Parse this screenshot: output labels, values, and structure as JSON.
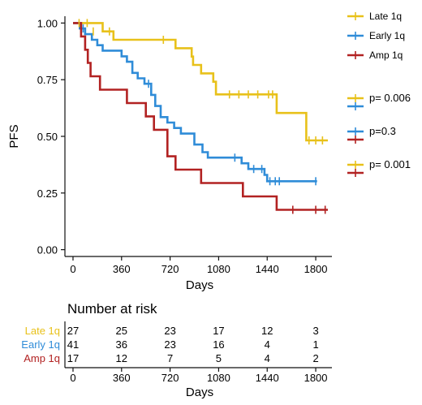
{
  "chart_data": {
    "type": "line",
    "subtype": "kaplan-meier",
    "xlabel": "Days",
    "ylabel": "PFS",
    "xlim": [
      -60,
      1920
    ],
    "ylim": [
      -0.03,
      1.03
    ],
    "x_ticks": [
      0,
      360,
      720,
      1080,
      1440,
      1800
    ],
    "y_ticks": [
      0.0,
      0.25,
      0.5,
      0.75,
      1.0
    ],
    "y_tick_labels": [
      "0.00",
      "0.25",
      "0.50",
      "0.75",
      "1.00"
    ],
    "grid": false,
    "legend_position": "right",
    "series": [
      {
        "name": "Late 1q",
        "color": "#E8C11A",
        "steps": [
          [
            0,
            1.0
          ],
          [
            220,
            1.0
          ],
          [
            220,
            0.963
          ],
          [
            300,
            0.963
          ],
          [
            300,
            0.926
          ],
          [
            760,
            0.926
          ],
          [
            760,
            0.889
          ],
          [
            880,
            0.889
          ],
          [
            880,
            0.852
          ],
          [
            890,
            0.852
          ],
          [
            890,
            0.815
          ],
          [
            950,
            0.815
          ],
          [
            950,
            0.778
          ],
          [
            1040,
            0.778
          ],
          [
            1040,
            0.741
          ],
          [
            1060,
            0.741
          ],
          [
            1060,
            0.685
          ],
          [
            1510,
            0.685
          ],
          [
            1510,
            0.603
          ],
          [
            1730,
            0.603
          ],
          [
            1730,
            0.482
          ],
          [
            1890,
            0.482
          ]
        ],
        "censor": [
          [
            45,
            1.0
          ],
          [
            105,
            1.0
          ],
          [
            150,
            0.963
          ],
          [
            270,
            0.963
          ],
          [
            670,
            0.926
          ],
          [
            1160,
            0.685
          ],
          [
            1230,
            0.685
          ],
          [
            1300,
            0.685
          ],
          [
            1370,
            0.685
          ],
          [
            1450,
            0.685
          ],
          [
            1480,
            0.685
          ],
          [
            1750,
            0.482
          ],
          [
            1800,
            0.482
          ],
          [
            1850,
            0.482
          ]
        ]
      },
      {
        "name": "Early 1q",
        "color": "#2F8CD8",
        "steps": [
          [
            0,
            1.0
          ],
          [
            50,
            1.0
          ],
          [
            50,
            0.976
          ],
          [
            90,
            0.976
          ],
          [
            90,
            0.951
          ],
          [
            140,
            0.951
          ],
          [
            140,
            0.926
          ],
          [
            180,
            0.926
          ],
          [
            180,
            0.902
          ],
          [
            220,
            0.902
          ],
          [
            220,
            0.878
          ],
          [
            360,
            0.878
          ],
          [
            360,
            0.853
          ],
          [
            400,
            0.853
          ],
          [
            400,
            0.829
          ],
          [
            440,
            0.829
          ],
          [
            440,
            0.78
          ],
          [
            480,
            0.78
          ],
          [
            480,
            0.756
          ],
          [
            530,
            0.756
          ],
          [
            530,
            0.732
          ],
          [
            580,
            0.732
          ],
          [
            580,
            0.683
          ],
          [
            610,
            0.683
          ],
          [
            610,
            0.634
          ],
          [
            650,
            0.634
          ],
          [
            650,
            0.585
          ],
          [
            700,
            0.585
          ],
          [
            700,
            0.561
          ],
          [
            750,
            0.561
          ],
          [
            750,
            0.537
          ],
          [
            800,
            0.537
          ],
          [
            800,
            0.512
          ],
          [
            900,
            0.512
          ],
          [
            900,
            0.464
          ],
          [
            960,
            0.464
          ],
          [
            960,
            0.43
          ],
          [
            1000,
            0.43
          ],
          [
            1000,
            0.406
          ],
          [
            1250,
            0.406
          ],
          [
            1250,
            0.381
          ],
          [
            1300,
            0.381
          ],
          [
            1300,
            0.356
          ],
          [
            1420,
            0.356
          ],
          [
            1420,
            0.33
          ],
          [
            1440,
            0.33
          ],
          [
            1440,
            0.302
          ],
          [
            1810,
            0.302
          ]
        ],
        "censor": [
          [
            75,
            0.976
          ],
          [
            560,
            0.732
          ],
          [
            1200,
            0.406
          ],
          [
            1340,
            0.356
          ],
          [
            1400,
            0.356
          ],
          [
            1460,
            0.302
          ],
          [
            1500,
            0.302
          ],
          [
            1530,
            0.302
          ],
          [
            1800,
            0.302
          ]
        ]
      },
      {
        "name": "Amp 1q",
        "color": "#B22222",
        "steps": [
          [
            0,
            1.0
          ],
          [
            60,
            1.0
          ],
          [
            60,
            0.941
          ],
          [
            90,
            0.941
          ],
          [
            90,
            0.882
          ],
          [
            110,
            0.882
          ],
          [
            110,
            0.824
          ],
          [
            130,
            0.824
          ],
          [
            130,
            0.765
          ],
          [
            200,
            0.765
          ],
          [
            200,
            0.706
          ],
          [
            400,
            0.706
          ],
          [
            400,
            0.647
          ],
          [
            540,
            0.647
          ],
          [
            540,
            0.588
          ],
          [
            600,
            0.588
          ],
          [
            600,
            0.529
          ],
          [
            700,
            0.529
          ],
          [
            700,
            0.412
          ],
          [
            760,
            0.412
          ],
          [
            760,
            0.353
          ],
          [
            950,
            0.353
          ],
          [
            950,
            0.294
          ],
          [
            1260,
            0.294
          ],
          [
            1260,
            0.235
          ],
          [
            1510,
            0.235
          ],
          [
            1510,
            0.176
          ],
          [
            1890,
            0.176
          ]
        ],
        "censor": [
          [
            1630,
            0.176
          ],
          [
            1800,
            0.176
          ],
          [
            1870,
            0.176
          ]
        ]
      }
    ],
    "p_values": [
      {
        "label": "p= 0.006",
        "colors": [
          "#E8C11A",
          "#2F8CD8"
        ]
      },
      {
        "label": "p=0.3",
        "colors": [
          "#2F8CD8",
          "#B22222"
        ]
      },
      {
        "label": "p= 0.001",
        "colors": [
          "#E8C11A",
          "#B22222"
        ]
      }
    ],
    "risk_table": {
      "title": "Number at risk",
      "xlabel": "Days",
      "times": [
        0,
        360,
        720,
        1080,
        1440,
        1800
      ],
      "rows": [
        {
          "name": "Late 1q",
          "color": "#E8C11A",
          "counts": [
            "27",
            "25",
            "23",
            "17",
            "12",
            "3"
          ]
        },
        {
          "name": "Early 1q",
          "color": "#2F8CD8",
          "counts": [
            "41",
            "36",
            "23",
            "16",
            "4",
            "1"
          ]
        },
        {
          "name": "Amp 1q",
          "color": "#B22222",
          "counts": [
            "17",
            "12",
            "7",
            "5",
            "4",
            "2"
          ]
        }
      ]
    }
  }
}
